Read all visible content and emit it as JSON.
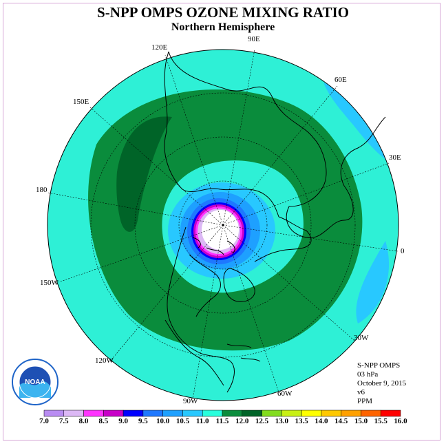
{
  "title": "S-NPP OMPS OZONE MIXING RATIO",
  "subtitle": "Northern Hemisphere",
  "longitude_labels": [
    "90E",
    "60E",
    "30E",
    "0",
    "30W",
    "60W",
    "90W",
    "120W",
    "150W",
    "180",
    "150E",
    "120E"
  ],
  "info": {
    "instrument": "S-NPP OMPS",
    "level": "03 hPa",
    "date": "October 9, 2015",
    "version": "v6",
    "units": "PPM"
  },
  "logo_text": "NOAA",
  "colorbar": {
    "labels": [
      "7.0",
      "7.5",
      "8.0",
      "8.5",
      "9.0",
      "9.5",
      "10.0",
      "10.5",
      "11.0",
      "11.5",
      "12.0",
      "12.5",
      "13.0",
      "13.5",
      "14.0",
      "14.5",
      "15.0",
      "15.5",
      "16.0"
    ],
    "colors": [
      "#b98cf2",
      "#dcb8f5",
      "#ff33ff",
      "#c800c8",
      "#0000ff",
      "#1e78ff",
      "#1ea0ff",
      "#28c8ff",
      "#28ffdc",
      "#0a8c3c",
      "#006428",
      "#82dc1e",
      "#c8f014",
      "#ffff00",
      "#ffc800",
      "#ffa000",
      "#ff6400",
      "#ff0000",
      "#965032"
    ]
  },
  "colors": {
    "ocean_band": "#2ef0d6",
    "green_ring": "#0a8c3c",
    "dark_green": "#006428",
    "light_blue": "#28c8ff",
    "pole_white": "#ffffff"
  }
}
